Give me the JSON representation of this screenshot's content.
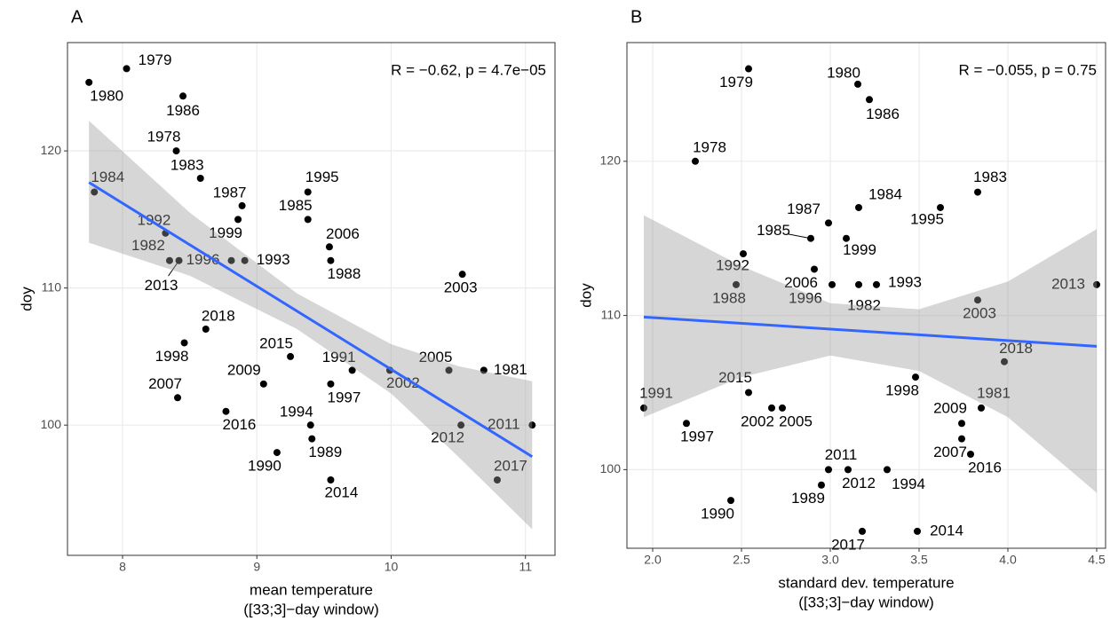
{
  "chart_data": [
    {
      "type": "scatter",
      "title": "A",
      "x_label": [
        "mean temperature",
        "([33;3]−day window)"
      ],
      "y_label": "doy",
      "annotation": "R = −0.62, p = 4.7e−05",
      "xlim": [
        7.59,
        11.22
      ],
      "ylim": [
        90.5,
        127.9
      ],
      "xticks": [
        8,
        9,
        10,
        11
      ],
      "yticks": [
        100,
        110,
        120
      ],
      "grid": true,
      "point_color": "#000000",
      "point_labels": [
        "1980",
        "1979",
        "1986",
        "1978",
        "1983",
        "1984",
        "1987",
        "1999",
        "1995",
        "1985",
        "2006",
        "1988",
        "1992",
        "1982",
        "2013",
        "1996",
        "1993",
        "2003",
        "2018",
        "1998",
        "2015",
        "1991",
        "2002",
        "2005",
        "1981",
        "2009",
        "1997",
        "2007",
        "2016",
        "1994",
        "2012",
        "2011",
        "1989",
        "1990",
        "2014",
        "2017"
      ],
      "x": [
        7.75,
        8.03,
        8.45,
        8.4,
        8.58,
        7.79,
        8.89,
        8.86,
        9.38,
        9.38,
        9.54,
        9.55,
        8.32,
        8.35,
        8.42,
        8.81,
        8.91,
        10.53,
        8.62,
        8.46,
        9.25,
        9.71,
        9.99,
        10.43,
        10.69,
        9.05,
        9.55,
        8.41,
        8.77,
        9.4,
        10.52,
        11.05,
        9.41,
        9.15,
        9.55,
        10.79
      ],
      "values": [
        125,
        126,
        124,
        120,
        118,
        117,
        116,
        115,
        117,
        115,
        113,
        112,
        114,
        112,
        112,
        112,
        112,
        111,
        107,
        106,
        105,
        104,
        104,
        104,
        104,
        103,
        103,
        102,
        101,
        100,
        100,
        100,
        99,
        98,
        96,
        96
      ],
      "fit": {
        "color": "#3366ff",
        "x": [
          7.75,
          11.05
        ],
        "values": [
          117.7,
          97.7
        ]
      },
      "band": {
        "color": "#999999",
        "x": [
          7.75,
          8.5,
          9.3,
          10.0,
          10.5,
          11.05
        ],
        "upper": [
          122.2,
          115.5,
          109.6,
          105.9,
          104.3,
          103.2
        ],
        "lower": [
          113.3,
          110.9,
          107.0,
          102.3,
          97.7,
          92.4
        ]
      }
    },
    {
      "type": "scatter",
      "title": "B",
      "x_label": [
        "standard dev. temperature",
        "([33;3]−day window)"
      ],
      "y_label": "doy",
      "annotation": "R = −0.055, p = 0.75",
      "xlim": [
        1.855,
        4.55
      ],
      "ylim": [
        94.9,
        127.7
      ],
      "xticks": [
        {
          "value": 2,
          "label": "2.0"
        },
        {
          "value": 2.5,
          "label": "2.5"
        },
        {
          "value": 3,
          "label": "3.0"
        },
        {
          "value": 3.5,
          "label": "3.5"
        },
        {
          "value": 4,
          "label": "4.0"
        },
        {
          "value": 4.5,
          "label": "4.5"
        }
      ],
      "yticks": [
        100,
        110,
        120
      ],
      "grid": true,
      "point_color": "#000000",
      "point_labels": [
        "1979",
        "1980",
        "1986",
        "1978",
        "1983",
        "1995",
        "1984",
        "1987",
        "1985",
        "1999",
        "2006",
        "1992",
        "1988",
        "1996",
        "1982",
        "1993",
        "2003",
        "2013",
        "2018",
        "1998",
        "2015",
        "1991",
        "2002",
        "2005",
        "1981",
        "1997",
        "2009",
        "2007",
        "2016",
        "2011",
        "2012",
        "1994",
        "1989",
        "1990",
        "2017",
        "2014"
      ],
      "x": [
        2.54,
        3.155,
        3.22,
        2.24,
        3.83,
        3.62,
        3.16,
        2.99,
        2.89,
        3.09,
        2.91,
        2.51,
        2.47,
        3.01,
        3.16,
        3.26,
        3.83,
        4.5,
        3.98,
        3.48,
        2.54,
        1.95,
        2.67,
        2.73,
        3.85,
        2.19,
        3.74,
        3.74,
        3.79,
        2.99,
        3.1,
        3.32,
        2.95,
        2.44,
        3.18,
        3.49
      ],
      "values": [
        126,
        125,
        124,
        120,
        118,
        117,
        117,
        116,
        115,
        115,
        113,
        114,
        112,
        112,
        112,
        112,
        111,
        112,
        107,
        106,
        105,
        104,
        104,
        104,
        104,
        103,
        103,
        102,
        101,
        100,
        100,
        100,
        99,
        98,
        96,
        96
      ],
      "fit": {
        "color": "#3366ff",
        "x": [
          1.95,
          4.5
        ],
        "values": [
          109.9,
          108.0
        ]
      },
      "band": {
        "color": "#999999",
        "x": [
          1.95,
          2.5,
          3.0,
          3.5,
          4.0,
          4.5
        ],
        "upper": [
          116.5,
          113.2,
          110.8,
          110.4,
          112.2,
          115.6
        ],
        "lower": [
          103.4,
          106.0,
          107.4,
          106.4,
          103.4,
          98.5
        ]
      }
    }
  ]
}
